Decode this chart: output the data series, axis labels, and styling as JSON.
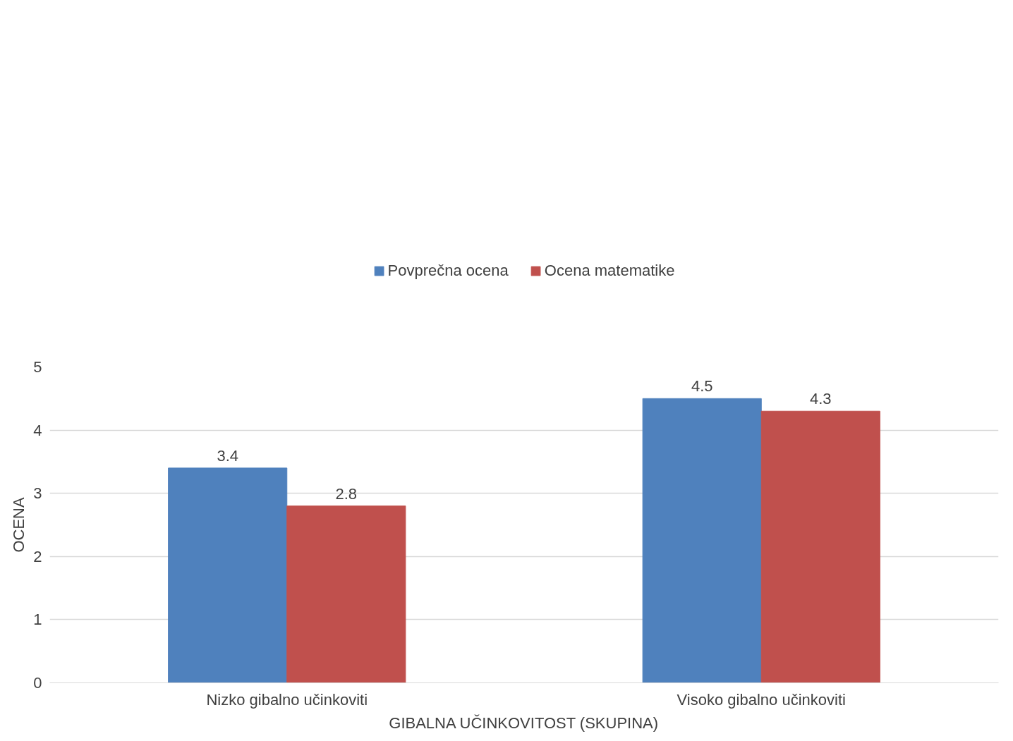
{
  "chart_data": {
    "type": "bar",
    "xlabel": "GIBALNA UČINKOVITOST (SKUPINA)",
    "ylabel": "OCENA",
    "categories": [
      "Nizko gibalno učinkoviti",
      "Visoko gibalno učinkoviti"
    ],
    "series": [
      {
        "name": "Povprečna ocena",
        "color": "#4f81bd",
        "values": [
          3.4,
          4.5
        ]
      },
      {
        "name": "Ocena matematike",
        "color": "#c0504d",
        "values": [
          2.8,
          4.3
        ]
      }
    ],
    "ylim": [
      0,
      5
    ],
    "yticks": [
      0,
      1,
      2,
      3,
      4,
      5
    ],
    "grid": "y",
    "legend": "top",
    "data_labels": true
  }
}
